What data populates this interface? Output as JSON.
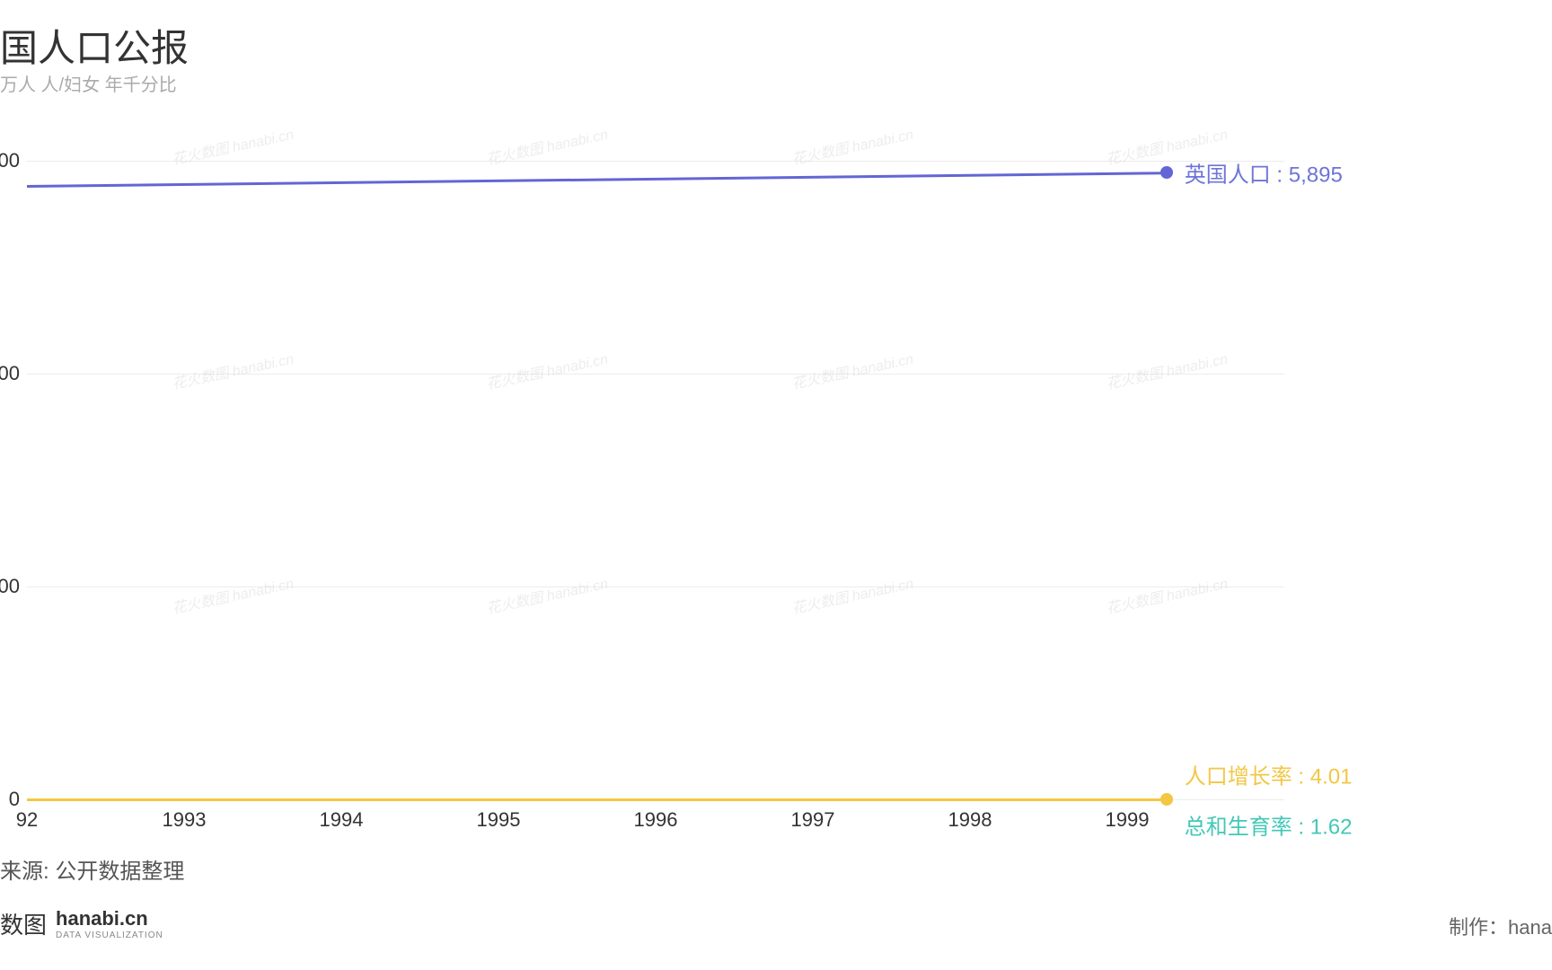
{
  "title": "国人口公报",
  "subtitle": "万人 人/妇女 年千分比",
  "source": "来源: 公开数据整理",
  "footer": {
    "brand_ch": "数图",
    "brand_en": "hanabi.cn",
    "brand_sub": "DATA VISUALIZATION",
    "credit": "制作：hana"
  },
  "chart": {
    "type": "line",
    "xlim": [
      1992,
      2000
    ],
    "ylim": [
      0,
      6500
    ],
    "y_ticks": [
      {
        "value": 0,
        "label": "0"
      },
      {
        "value": 2000,
        "label": "00"
      },
      {
        "value": 4000,
        "label": "00"
      },
      {
        "value": 6000,
        "label": "00"
      }
    ],
    "x_ticks": [
      1992,
      1993,
      1994,
      1995,
      1996,
      1997,
      1998,
      1999
    ],
    "x_tick_labels": [
      "92",
      "1993",
      "1994",
      "1995",
      "1996",
      "1997",
      "1998",
      "1999"
    ],
    "background_color": "#ffffff",
    "grid_color": "#ececec",
    "axis_fontsize": 22,
    "title_fontsize": 42,
    "label_fontsize": 24,
    "series": [
      {
        "name": "英国人口",
        "color": "#6366d4",
        "label": "英国人口 : 5,895",
        "label_color": "#6e74d7",
        "y_start": 5770,
        "y_end": 5895,
        "line_width": 3,
        "end_x": 1999.25
      },
      {
        "name": "人口增长率",
        "color": "#f2c744",
        "label": "人口增长率 : 4.01",
        "label_color": "#f2c744",
        "y_start": 4.5,
        "y_end": 4.01,
        "line_width": 3,
        "end_x": 1999.25
      },
      {
        "name": "总和生育率",
        "color": "#42c8b7",
        "label": "总和生育率 : 1.62",
        "label_color": "#42c8b7",
        "y_start": 1.8,
        "y_end": 1.62,
        "line_width": 3,
        "end_x": 1999.25,
        "hide_line": true
      }
    ],
    "series_label_y_offsets": [
      0,
      -28,
      28
    ]
  },
  "watermark_text": "花火数图 hanabi.cn"
}
